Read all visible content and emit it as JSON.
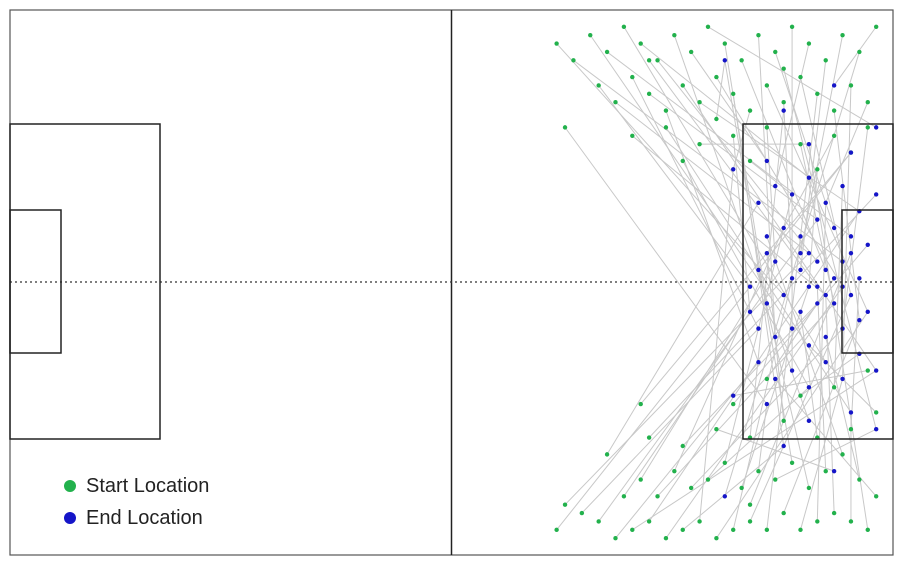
{
  "chart_data": {
    "type": "scatter",
    "title": "",
    "xlabel": "",
    "ylabel": "",
    "pitch": {
      "length_m": 105,
      "width_m": 65,
      "grid": false,
      "halfway_line": true,
      "centre_line": "dotted"
    },
    "legend": {
      "placement": "bottom-left",
      "entries": [
        {
          "label": "Start Location",
          "color": "#22b14c"
        },
        {
          "label": "End Location",
          "color": "#1515c8"
        }
      ]
    },
    "colors": {
      "start": "#22b14c",
      "end": "#1515c8",
      "connector": "#c8c8c8",
      "lines": "#222222"
    },
    "series": [
      {
        "name": "Start Location",
        "points": [
          {
            "x": 65,
            "y": 62
          },
          {
            "x": 66,
            "y": 59
          },
          {
            "x": 68,
            "y": 60
          },
          {
            "x": 70,
            "y": 61
          },
          {
            "x": 72,
            "y": 63
          },
          {
            "x": 74,
            "y": 62
          },
          {
            "x": 76,
            "y": 61
          },
          {
            "x": 78,
            "y": 63
          },
          {
            "x": 80,
            "y": 62
          },
          {
            "x": 82,
            "y": 61
          },
          {
            "x": 84,
            "y": 63
          },
          {
            "x": 86,
            "y": 62
          },
          {
            "x": 88,
            "y": 61
          },
          {
            "x": 90,
            "y": 62
          },
          {
            "x": 92,
            "y": 60
          },
          {
            "x": 94,
            "y": 62
          },
          {
            "x": 96,
            "y": 61
          },
          {
            "x": 98,
            "y": 60
          },
          {
            "x": 100,
            "y": 61
          },
          {
            "x": 102,
            "y": 62
          },
          {
            "x": 73,
            "y": 58
          },
          {
            "x": 75,
            "y": 56
          },
          {
            "x": 77,
            "y": 58
          },
          {
            "x": 79,
            "y": 55
          },
          {
            "x": 81,
            "y": 57
          },
          {
            "x": 83,
            "y": 56
          },
          {
            "x": 85,
            "y": 54
          },
          {
            "x": 87,
            "y": 57
          },
          {
            "x": 89,
            "y": 55
          },
          {
            "x": 91,
            "y": 56
          },
          {
            "x": 93,
            "y": 54
          },
          {
            "x": 95,
            "y": 57
          },
          {
            "x": 97,
            "y": 55
          },
          {
            "x": 99,
            "y": 53
          },
          {
            "x": 101,
            "y": 56
          },
          {
            "x": 103,
            "y": 58
          },
          {
            "x": 71,
            "y": 53
          },
          {
            "x": 76,
            "y": 51
          },
          {
            "x": 80,
            "y": 52
          },
          {
            "x": 84,
            "y": 50
          },
          {
            "x": 88,
            "y": 51
          },
          {
            "x": 92,
            "y": 49
          },
          {
            "x": 96,
            "y": 51
          },
          {
            "x": 100,
            "y": 50
          },
          {
            "x": 103,
            "y": 48
          },
          {
            "x": 86,
            "y": 47
          },
          {
            "x": 94,
            "y": 46
          },
          {
            "x": 98,
            "y": 45
          },
          {
            "x": 90,
            "y": 44
          },
          {
            "x": 102,
            "y": 43
          },
          {
            "x": 75,
            "y": 47
          },
          {
            "x": 88,
            "y": 59
          },
          {
            "x": 65,
            "y": 4
          },
          {
            "x": 67,
            "y": 6
          },
          {
            "x": 69,
            "y": 3
          },
          {
            "x": 71,
            "y": 5
          },
          {
            "x": 73,
            "y": 2
          },
          {
            "x": 75,
            "y": 4
          },
          {
            "x": 77,
            "y": 6
          },
          {
            "x": 79,
            "y": 3
          },
          {
            "x": 81,
            "y": 5
          },
          {
            "x": 83,
            "y": 2
          },
          {
            "x": 85,
            "y": 4
          },
          {
            "x": 87,
            "y": 6
          },
          {
            "x": 89,
            "y": 3
          },
          {
            "x": 91,
            "y": 5
          },
          {
            "x": 93,
            "y": 2
          },
          {
            "x": 95,
            "y": 4
          },
          {
            "x": 97,
            "y": 6
          },
          {
            "x": 99,
            "y": 3
          },
          {
            "x": 101,
            "y": 5
          },
          {
            "x": 103,
            "y": 2
          },
          {
            "x": 70,
            "y": 9
          },
          {
            "x": 72,
            "y": 11
          },
          {
            "x": 74,
            "y": 8
          },
          {
            "x": 76,
            "y": 10
          },
          {
            "x": 78,
            "y": 12
          },
          {
            "x": 80,
            "y": 9
          },
          {
            "x": 82,
            "y": 11
          },
          {
            "x": 84,
            "y": 8
          },
          {
            "x": 86,
            "y": 10
          },
          {
            "x": 88,
            "y": 12
          },
          {
            "x": 90,
            "y": 9
          },
          {
            "x": 92,
            "y": 11
          },
          {
            "x": 94,
            "y": 8
          },
          {
            "x": 96,
            "y": 10
          },
          {
            "x": 98,
            "y": 12
          },
          {
            "x": 100,
            "y": 9
          },
          {
            "x": 102,
            "y": 11
          },
          {
            "x": 74,
            "y": 15
          },
          {
            "x": 78,
            "y": 14
          },
          {
            "x": 82,
            "y": 16
          },
          {
            "x": 86,
            "y": 15
          },
          {
            "x": 90,
            "y": 14
          },
          {
            "x": 94,
            "y": 16
          },
          {
            "x": 98,
            "y": 15
          },
          {
            "x": 102,
            "y": 14
          },
          {
            "x": 80,
            "y": 18
          },
          {
            "x": 88,
            "y": 18
          },
          {
            "x": 96,
            "y": 19
          },
          {
            "x": 66,
            "y": 14
          },
          {
            "x": 92,
            "y": 7
          },
          {
            "x": 84,
            "y": 13
          },
          {
            "x": 100,
            "y": 17
          },
          {
            "x": 76,
            "y": 6
          }
        ]
      },
      {
        "name": "End Location",
        "points": [
          {
            "x": 88,
            "y": 33
          },
          {
            "x": 89,
            "y": 31
          },
          {
            "x": 90,
            "y": 35
          },
          {
            "x": 91,
            "y": 30
          },
          {
            "x": 92,
            "y": 34
          },
          {
            "x": 93,
            "y": 32
          },
          {
            "x": 94,
            "y": 36
          },
          {
            "x": 95,
            "y": 29
          },
          {
            "x": 96,
            "y": 33
          },
          {
            "x": 97,
            "y": 31
          },
          {
            "x": 98,
            "y": 35
          },
          {
            "x": 99,
            "y": 30
          },
          {
            "x": 100,
            "y": 34
          },
          {
            "x": 101,
            "y": 32
          },
          {
            "x": 89,
            "y": 38
          },
          {
            "x": 90,
            "y": 27
          },
          {
            "x": 91,
            "y": 39
          },
          {
            "x": 92,
            "y": 26
          },
          {
            "x": 93,
            "y": 38
          },
          {
            "x": 94,
            "y": 27
          },
          {
            "x": 95,
            "y": 40
          },
          {
            "x": 96,
            "y": 25
          },
          {
            "x": 97,
            "y": 39
          },
          {
            "x": 98,
            "y": 26
          },
          {
            "x": 99,
            "y": 38
          },
          {
            "x": 100,
            "y": 27
          },
          {
            "x": 101,
            "y": 37
          },
          {
            "x": 102,
            "y": 28
          },
          {
            "x": 89,
            "y": 42
          },
          {
            "x": 91,
            "y": 44
          },
          {
            "x": 93,
            "y": 43
          },
          {
            "x": 95,
            "y": 45
          },
          {
            "x": 97,
            "y": 42
          },
          {
            "x": 99,
            "y": 44
          },
          {
            "x": 101,
            "y": 41
          },
          {
            "x": 103,
            "y": 43
          },
          {
            "x": 89,
            "y": 23
          },
          {
            "x": 91,
            "y": 21
          },
          {
            "x": 93,
            "y": 22
          },
          {
            "x": 95,
            "y": 20
          },
          {
            "x": 97,
            "y": 23
          },
          {
            "x": 99,
            "y": 21
          },
          {
            "x": 101,
            "y": 24
          },
          {
            "x": 103,
            "y": 22
          },
          {
            "x": 94,
            "y": 31
          },
          {
            "x": 95,
            "y": 33
          },
          {
            "x": 96,
            "y": 30
          },
          {
            "x": 97,
            "y": 34
          },
          {
            "x": 98,
            "y": 32
          },
          {
            "x": 99,
            "y": 33
          },
          {
            "x": 96,
            "y": 35
          },
          {
            "x": 94,
            "y": 29
          },
          {
            "x": 90,
            "y": 47
          },
          {
            "x": 95,
            "y": 49
          },
          {
            "x": 100,
            "y": 48
          },
          {
            "x": 86,
            "y": 46
          },
          {
            "x": 92,
            "y": 52
          },
          {
            "x": 98,
            "y": 55
          },
          {
            "x": 85,
            "y": 58
          },
          {
            "x": 103,
            "y": 50
          },
          {
            "x": 90,
            "y": 18
          },
          {
            "x": 95,
            "y": 16
          },
          {
            "x": 100,
            "y": 17
          },
          {
            "x": 86,
            "y": 19
          },
          {
            "x": 92,
            "y": 12
          },
          {
            "x": 98,
            "y": 9
          },
          {
            "x": 85,
            "y": 6
          },
          {
            "x": 103,
            "y": 14
          },
          {
            "x": 88,
            "y": 36
          },
          {
            "x": 100,
            "y": 29
          },
          {
            "x": 102,
            "y": 36
          },
          {
            "x": 90,
            "y": 29
          }
        ]
      }
    ]
  }
}
